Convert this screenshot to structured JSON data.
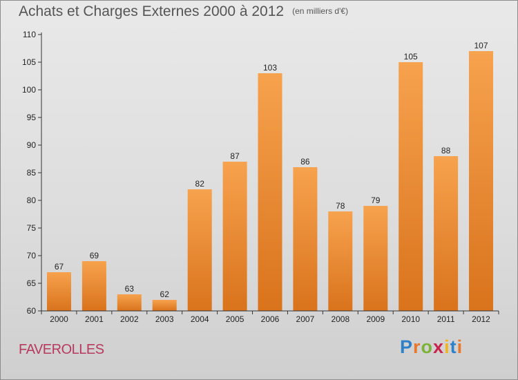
{
  "title": {
    "main": "Achats et Charges Externes 2000 à 2012",
    "unit": "(en milliers d'€)"
  },
  "place": "FAVEROLLES",
  "logo": {
    "text": "Proxiti",
    "letter_colors": [
      "#2f80c8",
      "#e8762b",
      "#7bb33a",
      "#c8234b",
      "#f2b31b",
      "#2f80c8",
      "#e8762b"
    ]
  },
  "colors": {
    "bar_light": "#f7a24e",
    "bar_dark": "#d9731c",
    "axis": "#333333"
  },
  "chart_data": {
    "type": "bar",
    "categories": [
      "2000",
      "2001",
      "2002",
      "2003",
      "2004",
      "2005",
      "2006",
      "2007",
      "2008",
      "2009",
      "2010",
      "2011",
      "2012"
    ],
    "values": [
      67,
      69,
      63,
      62,
      82,
      87,
      103,
      86,
      78,
      79,
      105,
      88,
      107
    ],
    "ylim": [
      60,
      110
    ],
    "yticks": [
      60,
      65,
      70,
      75,
      80,
      85,
      90,
      95,
      100,
      105,
      110
    ],
    "title": "Achats et Charges Externes 2000 à 2012",
    "xlabel": "",
    "ylabel": "",
    "grid": false,
    "legend": "none"
  }
}
